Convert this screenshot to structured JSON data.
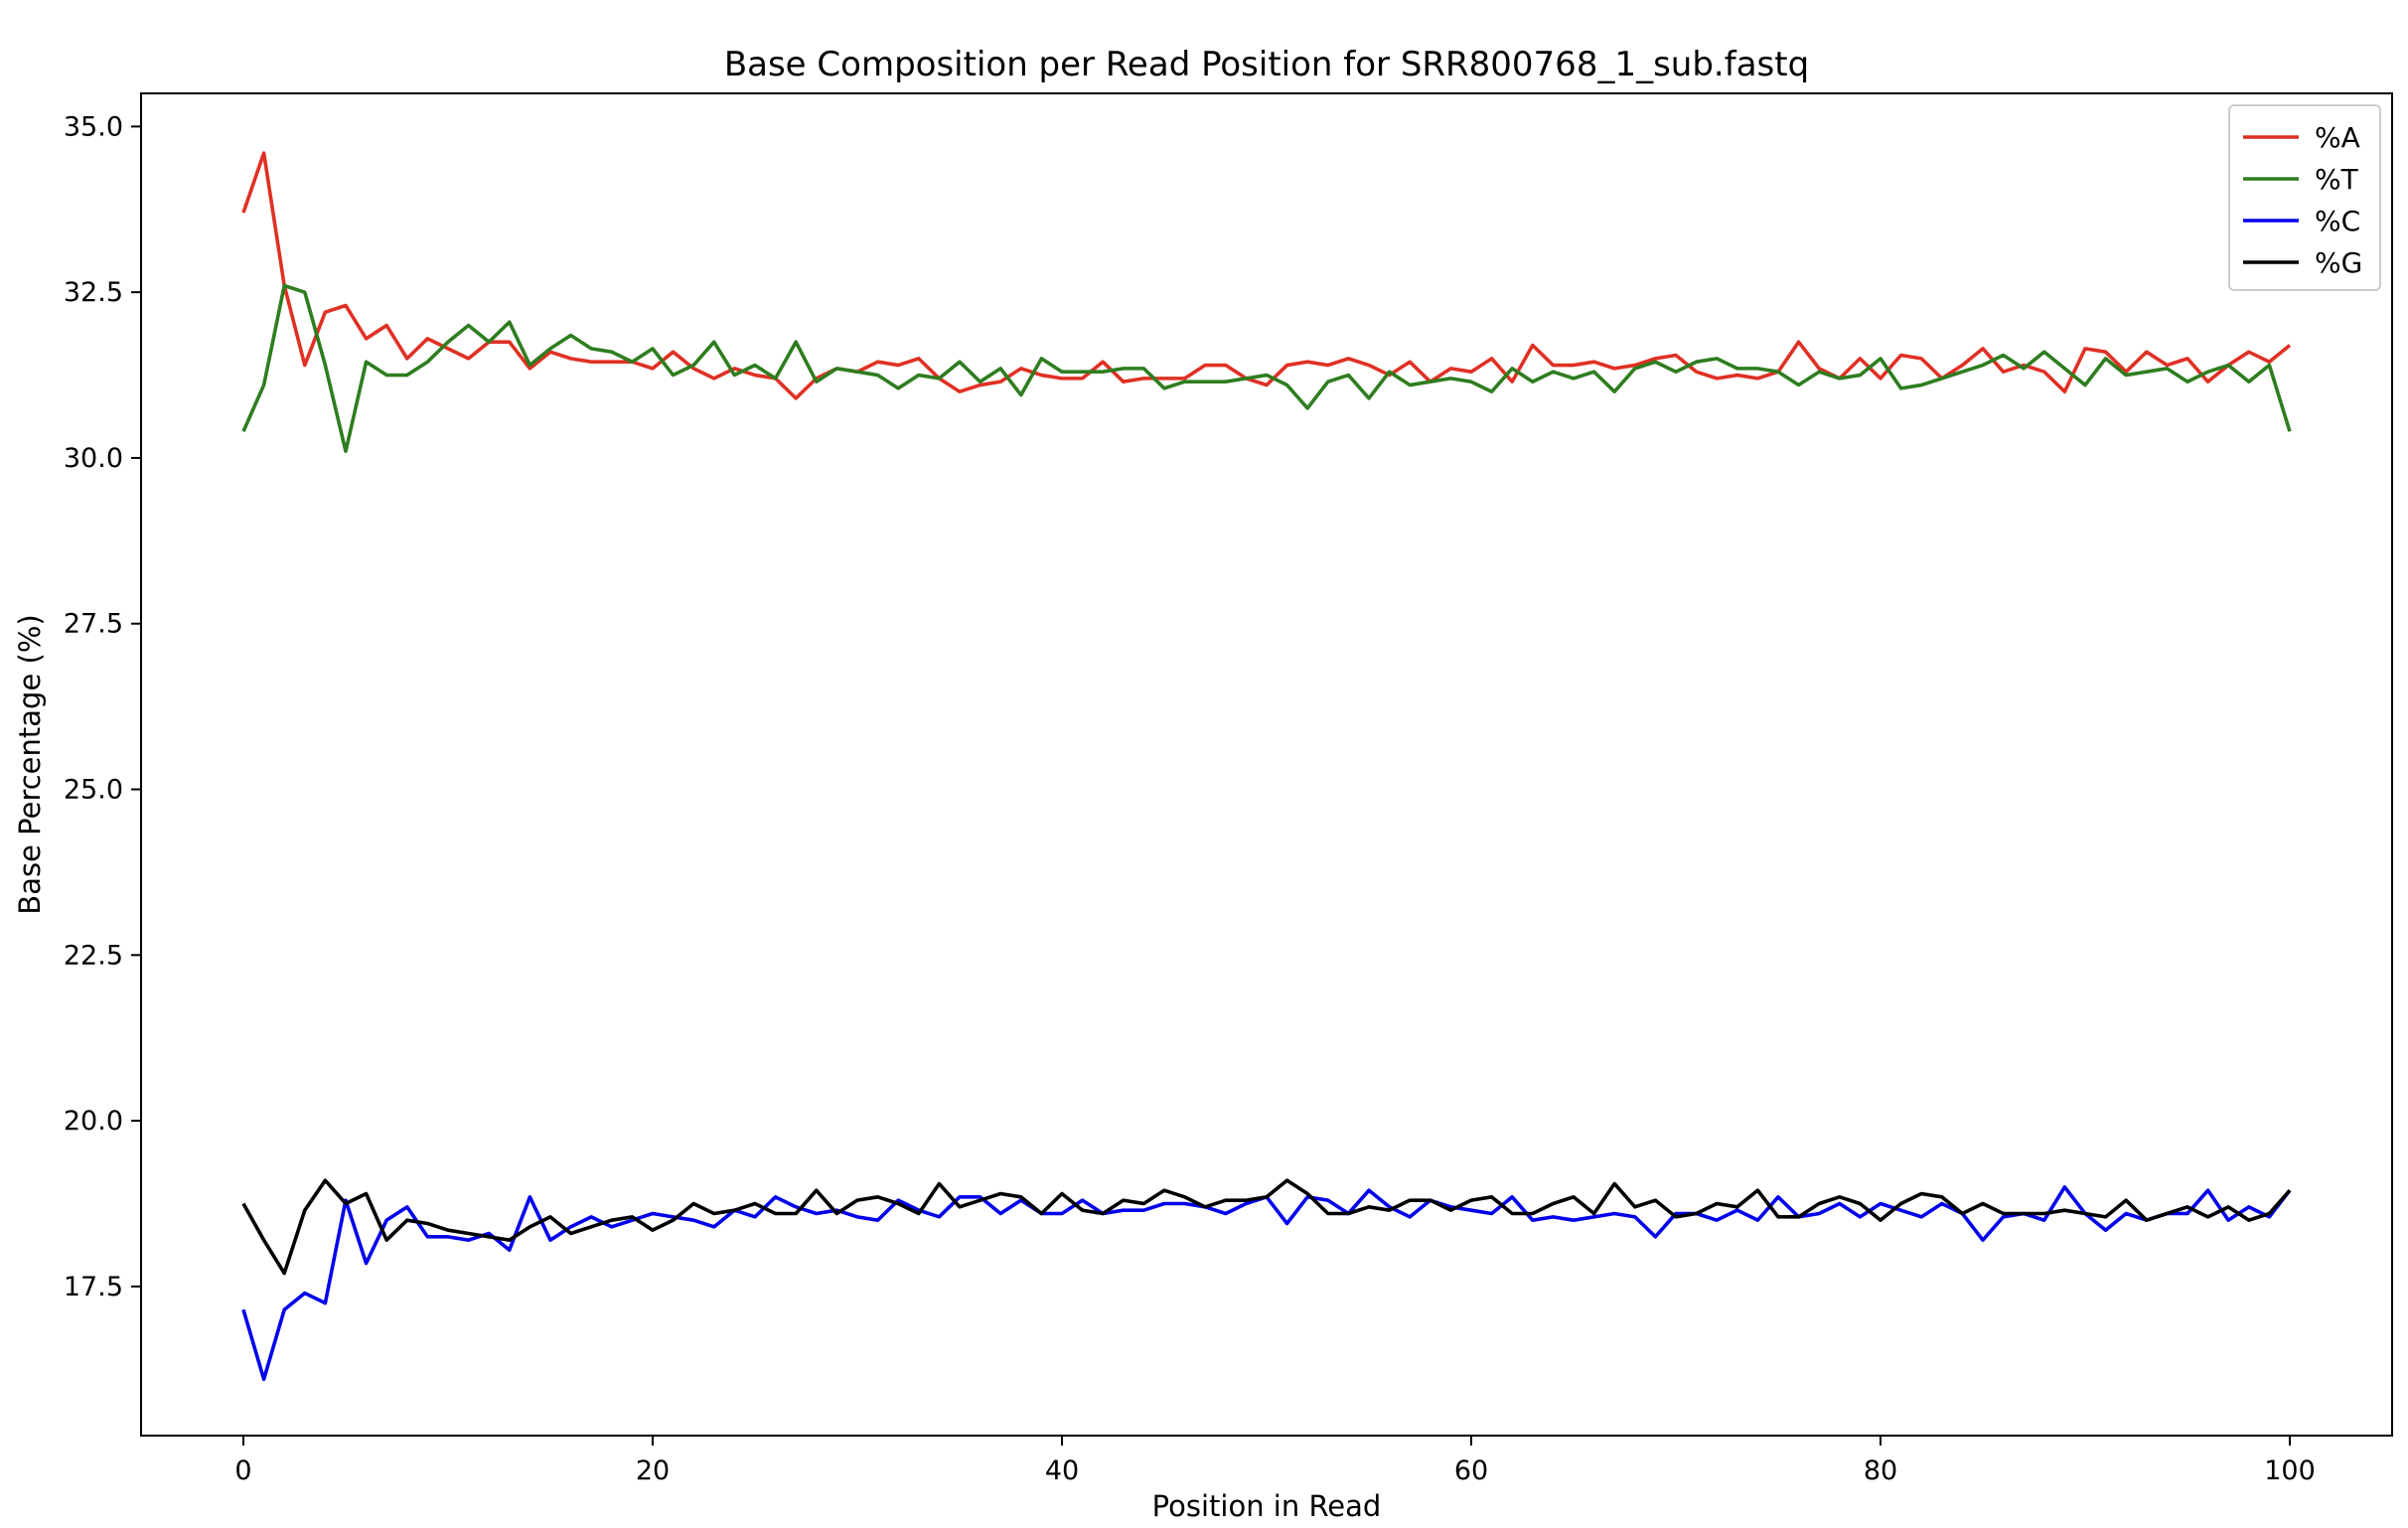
{
  "chart_data": {
    "type": "line",
    "title": "Base Composition per Read Position for SRR800768_1_sub.fastq",
    "xlabel": "Position in Read",
    "ylabel": "Base Percentage (%)",
    "xlim": [
      -5,
      105
    ],
    "ylim": [
      15.25,
      35.5
    ],
    "xticks": [
      0,
      20,
      40,
      60,
      80,
      100
    ],
    "yticks": [
      17.5,
      20.0,
      22.5,
      25.0,
      27.5,
      30.0,
      32.5,
      35.0
    ],
    "ytick_labels": [
      "17.5",
      "20.0",
      "22.5",
      "25.0",
      "27.5",
      "30.0",
      "32.5",
      "35.0"
    ],
    "xtick_labels": [
      "0",
      "20",
      "40",
      "60",
      "80",
      "100"
    ],
    "grid": false,
    "legend_position": "top-right",
    "x_start": 0,
    "series": [
      {
        "name": "%A",
        "color": "#e03024",
        "values": [
          33.7,
          34.6,
          32.6,
          31.4,
          32.2,
          32.3,
          31.8,
          32.0,
          31.5,
          31.8,
          31.65,
          31.5,
          31.75,
          31.75,
          31.35,
          31.6,
          31.5,
          31.45,
          31.45,
          31.45,
          31.35,
          31.6,
          31.35,
          31.2,
          31.35,
          31.25,
          31.2,
          30.9,
          31.2,
          31.35,
          31.3,
          31.45,
          31.4,
          31.5,
          31.2,
          31.0,
          31.1,
          31.15,
          31.35,
          31.25,
          31.2,
          31.2,
          31.45,
          31.15,
          31.2,
          31.2,
          31.2,
          31.4,
          31.4,
          31.2,
          31.1,
          31.4,
          31.45,
          31.4,
          31.5,
          31.4,
          31.25,
          31.45,
          31.15,
          31.35,
          31.3,
          31.5,
          31.15,
          31.7,
          31.4,
          31.4,
          31.45,
          31.35,
          31.4,
          31.5,
          31.55,
          31.3,
          31.2,
          31.25,
          31.2,
          31.3,
          31.75,
          31.35,
          31.2,
          31.5,
          31.2,
          31.55,
          31.5,
          31.2,
          31.4,
          31.65,
          31.3,
          31.4,
          31.3,
          31.0,
          31.65,
          31.6,
          31.3,
          31.6,
          31.4,
          31.5,
          31.15,
          31.4,
          31.6,
          31.45,
          31.7
        ]
      },
      {
        "name": "%T",
        "color": "#2e7d1f",
        "values": [
          30.4,
          31.1,
          32.6,
          32.5,
          31.4,
          30.1,
          31.45,
          31.25,
          31.25,
          31.45,
          31.75,
          32.0,
          31.75,
          32.05,
          31.4,
          31.65,
          31.85,
          31.65,
          31.6,
          31.45,
          31.65,
          31.25,
          31.4,
          31.75,
          31.25,
          31.4,
          31.2,
          31.75,
          31.15,
          31.35,
          31.3,
          31.25,
          31.05,
          31.25,
          31.2,
          31.45,
          31.15,
          31.35,
          30.95,
          31.5,
          31.3,
          31.3,
          31.3,
          31.35,
          31.35,
          31.05,
          31.15,
          31.15,
          31.15,
          31.2,
          31.25,
          31.1,
          30.75,
          31.15,
          31.25,
          30.9,
          31.3,
          31.1,
          31.15,
          31.2,
          31.15,
          31.0,
          31.35,
          31.15,
          31.3,
          31.2,
          31.3,
          31.0,
          31.35,
          31.45,
          31.3,
          31.45,
          31.5,
          31.35,
          31.35,
          31.3,
          31.1,
          31.3,
          31.2,
          31.25,
          31.5,
          31.05,
          31.1,
          31.2,
          31.3,
          31.4,
          31.55,
          31.35,
          31.6,
          31.35,
          31.1,
          31.5,
          31.25,
          31.3,
          31.35,
          31.15,
          31.3,
          31.4,
          31.15,
          31.4,
          30.4
        ]
      },
      {
        "name": "%C",
        "color": "#0000ee",
        "values": [
          17.15,
          16.1,
          17.15,
          17.4,
          17.25,
          18.8,
          17.85,
          18.5,
          18.7,
          18.25,
          18.25,
          18.2,
          18.3,
          18.05,
          18.85,
          18.2,
          18.4,
          18.55,
          18.4,
          18.5,
          18.6,
          18.55,
          18.5,
          18.4,
          18.65,
          18.55,
          18.85,
          18.7,
          18.6,
          18.65,
          18.55,
          18.5,
          18.8,
          18.65,
          18.55,
          18.85,
          18.85,
          18.6,
          18.8,
          18.6,
          18.6,
          18.8,
          18.6,
          18.65,
          18.65,
          18.75,
          18.75,
          18.7,
          18.6,
          18.75,
          18.85,
          18.45,
          18.85,
          18.8,
          18.6,
          18.95,
          18.7,
          18.55,
          18.8,
          18.7,
          18.65,
          18.6,
          18.85,
          18.5,
          18.55,
          18.5,
          18.55,
          18.6,
          18.55,
          18.25,
          18.6,
          18.6,
          18.5,
          18.65,
          18.5,
          18.85,
          18.55,
          18.6,
          18.75,
          18.55,
          18.75,
          18.65,
          18.55,
          18.75,
          18.6,
          18.2,
          18.55,
          18.6,
          18.5,
          19.0,
          18.6,
          18.35,
          18.6,
          18.5,
          18.6,
          18.6,
          18.95,
          18.5,
          18.7,
          18.55,
          18.95
        ]
      },
      {
        "name": "%G",
        "color": "#000000",
        "values": [
          18.75,
          18.2,
          17.7,
          18.65,
          19.1,
          18.75,
          18.9,
          18.2,
          18.5,
          18.45,
          18.35,
          18.3,
          18.25,
          18.2,
          18.4,
          18.55,
          18.3,
          18.4,
          18.5,
          18.55,
          18.35,
          18.5,
          18.75,
          18.6,
          18.65,
          18.75,
          18.6,
          18.6,
          18.95,
          18.6,
          18.8,
          18.85,
          18.75,
          18.6,
          19.05,
          18.7,
          18.8,
          18.9,
          18.85,
          18.6,
          18.9,
          18.65,
          18.6,
          18.8,
          18.75,
          18.95,
          18.85,
          18.7,
          18.8,
          18.8,
          18.85,
          19.1,
          18.9,
          18.6,
          18.6,
          18.7,
          18.65,
          18.8,
          18.8,
          18.65,
          18.8,
          18.85,
          18.6,
          18.6,
          18.75,
          18.85,
          18.6,
          19.05,
          18.7,
          18.8,
          18.55,
          18.6,
          18.75,
          18.7,
          18.95,
          18.55,
          18.55,
          18.75,
          18.85,
          18.75,
          18.5,
          18.75,
          18.9,
          18.85,
          18.6,
          18.75,
          18.6,
          18.6,
          18.6,
          18.65,
          18.6,
          18.55,
          18.8,
          18.5,
          18.6,
          18.7,
          18.55,
          18.7,
          18.5,
          18.6,
          18.95
        ]
      }
    ]
  }
}
